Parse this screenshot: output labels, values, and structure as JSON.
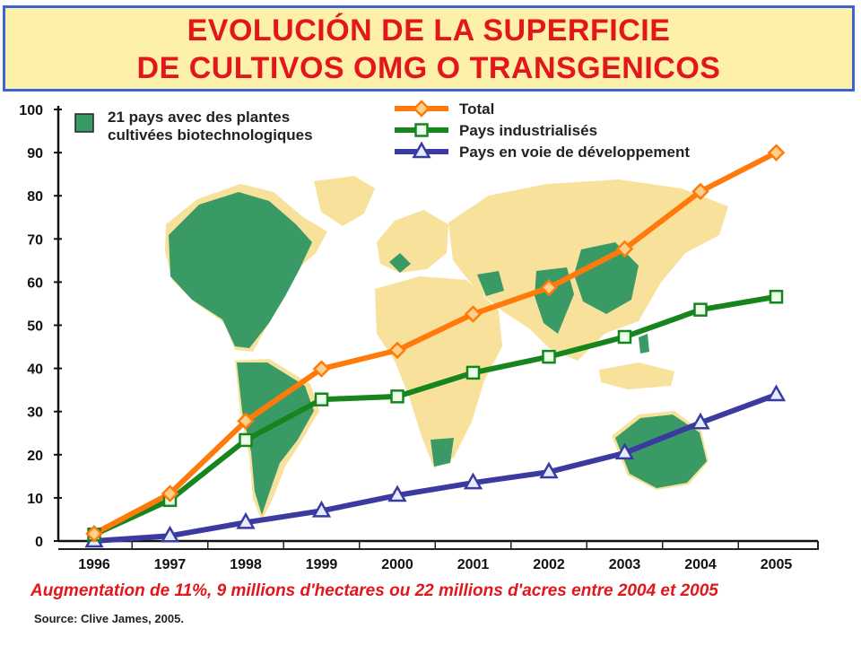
{
  "header": {
    "title_line1": "EVOLUCIÓN DE LA SUPERFICIE",
    "title_line2": "DE CULTIVOS OMG O TRANSGENICOS"
  },
  "map_legend": {
    "line1": "21 pays avec des plantes",
    "line2": "cultivées biotechnologiques",
    "color": "#3a9a66",
    "land_color": "#f8e19a"
  },
  "chart_data": {
    "type": "line",
    "categories": [
      "1996",
      "1997",
      "1998",
      "1999",
      "2000",
      "2001",
      "2002",
      "2003",
      "2004",
      "2005"
    ],
    "series": [
      {
        "name": "Total",
        "color": "#ff7a0a",
        "marker": "diamond",
        "values": [
          1.7,
          11,
          27.8,
          39.9,
          44.2,
          52.6,
          58.7,
          67.7,
          81,
          90
        ]
      },
      {
        "name": "Pays industrialisés",
        "color": "#16851d",
        "marker": "square",
        "values": [
          1.5,
          9.5,
          23.4,
          32.8,
          33.5,
          39,
          42.7,
          47.3,
          53.6,
          56.6
        ]
      },
      {
        "name": "Pays en voie de développement",
        "color": "#3b3aa0",
        "marker": "triangle",
        "values": [
          0,
          1.2,
          4.3,
          7,
          10.6,
          13.5,
          16,
          20.4,
          27.4,
          33.9
        ]
      }
    ],
    "yticks": [
      "0",
      "10",
      "20",
      "30",
      "40",
      "50",
      "60",
      "70",
      "80",
      "90",
      "100"
    ],
    "ylim": [
      0,
      100
    ],
    "grid": false,
    "legend": "top"
  },
  "footer": {
    "note": "Augmentation de 11%, 9 millions d'hectares ou 22 millions d'acres entre 2004 et 2005",
    "source": "Source: Clive James, 2005."
  }
}
